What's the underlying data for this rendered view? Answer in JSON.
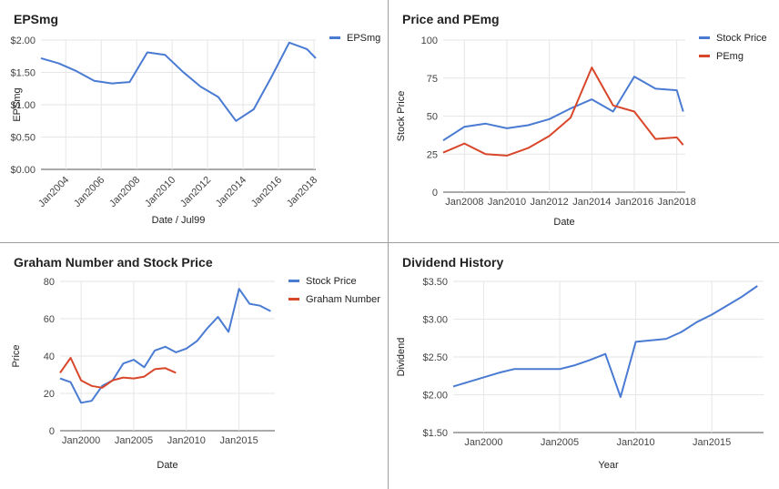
{
  "chart_data": [
    {
      "type": "line",
      "title": "EPSmg",
      "xlabel": "Date / Jul99",
      "ylabel": "EPSmg",
      "xlim": [
        2002.6,
        2018.1
      ],
      "ylim": [
        0,
        2
      ],
      "yticks": [
        0,
        0.5,
        1.0,
        1.5,
        2.0
      ],
      "ytick_labels": [
        "$0.00",
        "$0.50",
        "$1.00",
        "$1.50",
        "$2.00"
      ],
      "xticks": [
        2004,
        2006,
        2008,
        2010,
        2012,
        2014,
        2016,
        2018
      ],
      "xtick_labels": [
        "Jan2004",
        "Jan2006",
        "Jan2008",
        "Jan2010",
        "Jan2012",
        "Jan2014",
        "Jan2016",
        "Jan2018"
      ],
      "xtick_rotation": -45,
      "grid": true,
      "legend": "right",
      "series": [
        {
          "name": "EPSmg",
          "color": "#4a7bd3",
          "x": [
            2002.6,
            2003.6,
            2004.6,
            2005.6,
            2006.6,
            2007.6,
            2008.6,
            2009.6,
            2010.6,
            2011.6,
            2012.6,
            2013.6,
            2014.6,
            2015.6,
            2016.6,
            2017.6,
            2018.1
          ],
          "y": [
            1.72,
            1.64,
            1.52,
            1.37,
            1.33,
            1.35,
            1.81,
            1.77,
            1.51,
            1.28,
            1.12,
            0.75,
            0.93,
            1.43,
            1.96,
            1.86,
            1.72
          ]
        }
      ]
    },
    {
      "type": "line",
      "title": "Price and PEmg",
      "xlabel": "Date",
      "ylabel": "Stock Price",
      "xlim": [
        2007.0,
        2018.4
      ],
      "ylim": [
        0,
        100
      ],
      "yticks": [
        0,
        25,
        50,
        75,
        100
      ],
      "ytick_labels": [
        "0",
        "25",
        "50",
        "75",
        "100"
      ],
      "xticks": [
        2008,
        2010,
        2012,
        2014,
        2016,
        2018
      ],
      "xtick_labels": [
        "Jan2008",
        "Jan2010",
        "Jan2012",
        "Jan2014",
        "Jan2016",
        "Jan2018"
      ],
      "grid": true,
      "legend": "right",
      "series": [
        {
          "name": "Stock Price",
          "color": "#4a7bd3",
          "x": [
            2007.0,
            2008.0,
            2009.0,
            2010.0,
            2011.0,
            2012.0,
            2013.0,
            2014.0,
            2015.0,
            2016.0,
            2017.0,
            2018.0,
            2018.3
          ],
          "y": [
            34,
            43,
            45,
            42,
            44,
            48,
            55,
            61,
            53,
            76,
            68,
            67,
            53
          ]
        },
        {
          "name": "PEmg",
          "color": "#d9472b",
          "x": [
            2007.0,
            2008.0,
            2009.0,
            2010.0,
            2011.0,
            2012.0,
            2013.0,
            2014.0,
            2015.0,
            2016.0,
            2017.0,
            2018.0,
            2018.3
          ],
          "y": [
            26,
            32,
            25,
            24,
            29,
            37,
            49,
            82,
            57,
            53,
            35,
            36,
            31
          ]
        }
      ]
    },
    {
      "type": "line",
      "title": "Graham Number and Stock Price",
      "xlabel": "Date",
      "ylabel": "Price",
      "xlim": [
        1998.0,
        2018.4
      ],
      "ylim": [
        0,
        80
      ],
      "yticks": [
        0,
        20,
        40,
        60,
        80
      ],
      "ytick_labels": [
        "0",
        "20",
        "40",
        "60",
        "80"
      ],
      "xticks": [
        2000,
        2005,
        2010,
        2015
      ],
      "xtick_labels": [
        "Jan2000",
        "Jan2005",
        "Jan2010",
        "Jan2015"
      ],
      "grid": true,
      "legend": "right",
      "series": [
        {
          "name": "Stock Price",
          "color": "#4a7bd3",
          "x": [
            1998.0,
            1999.0,
            2000.0,
            2001.0,
            2002.0,
            2003.0,
            2004.0,
            2005.0,
            2006.0,
            2007.0,
            2008.0,
            2009.0,
            2010.0,
            2011.0,
            2012.0,
            2013.0,
            2014.0,
            2015.0,
            2016.0,
            2017.0,
            2018.0
          ],
          "y": [
            28,
            26,
            15,
            16,
            24,
            27,
            36,
            38,
            34,
            43,
            45,
            42,
            44,
            48,
            55,
            61,
            53,
            76,
            68,
            67,
            64
          ]
        },
        {
          "name": "Graham Number",
          "color": "#d9472b",
          "x": [
            1998.0,
            1999.0,
            2000.0,
            2001.0,
            2002.0,
            2003.0,
            2004.0,
            2005.0,
            2006.0,
            2007.0,
            2008.0,
            2009.0
          ],
          "y": [
            31,
            39,
            27,
            24,
            23,
            27,
            28.5,
            28,
            29,
            33,
            33.5,
            31
          ]
        }
      ]
    },
    {
      "type": "line",
      "title": "Dividend History",
      "xlabel": "Year",
      "ylabel": "Dividend",
      "xlim": [
        1998.0,
        2018.4
      ],
      "ylim": [
        1.5,
        3.5
      ],
      "yticks": [
        1.5,
        2.0,
        2.5,
        3.0,
        3.5
      ],
      "ytick_labels": [
        "$1.50",
        "$2.00",
        "$2.50",
        "$3.00",
        "$3.50"
      ],
      "xticks": [
        2000,
        2005,
        2010,
        2015
      ],
      "xtick_labels": [
        "Jan2000",
        "Jan2005",
        "Jan2010",
        "Jan2015"
      ],
      "grid": true,
      "legend": "none",
      "series": [
        {
          "color": "#4a7bd3",
          "x": [
            1998.0,
            1999.0,
            2000.0,
            2001.0,
            2002.0,
            2003.0,
            2004.0,
            2005.0,
            2006.0,
            2007.0,
            2008.0,
            2009.0,
            2010.0,
            2011.0,
            2012.0,
            2013.0,
            2014.0,
            2015.0,
            2016.0,
            2017.0,
            2018.0
          ],
          "y": [
            2.11,
            2.17,
            2.23,
            2.29,
            2.34,
            2.34,
            2.34,
            2.34,
            2.39,
            2.46,
            2.54,
            1.97,
            2.7,
            2.72,
            2.74,
            2.83,
            2.96,
            3.06,
            3.18,
            3.3,
            3.44
          ]
        }
      ]
    }
  ]
}
